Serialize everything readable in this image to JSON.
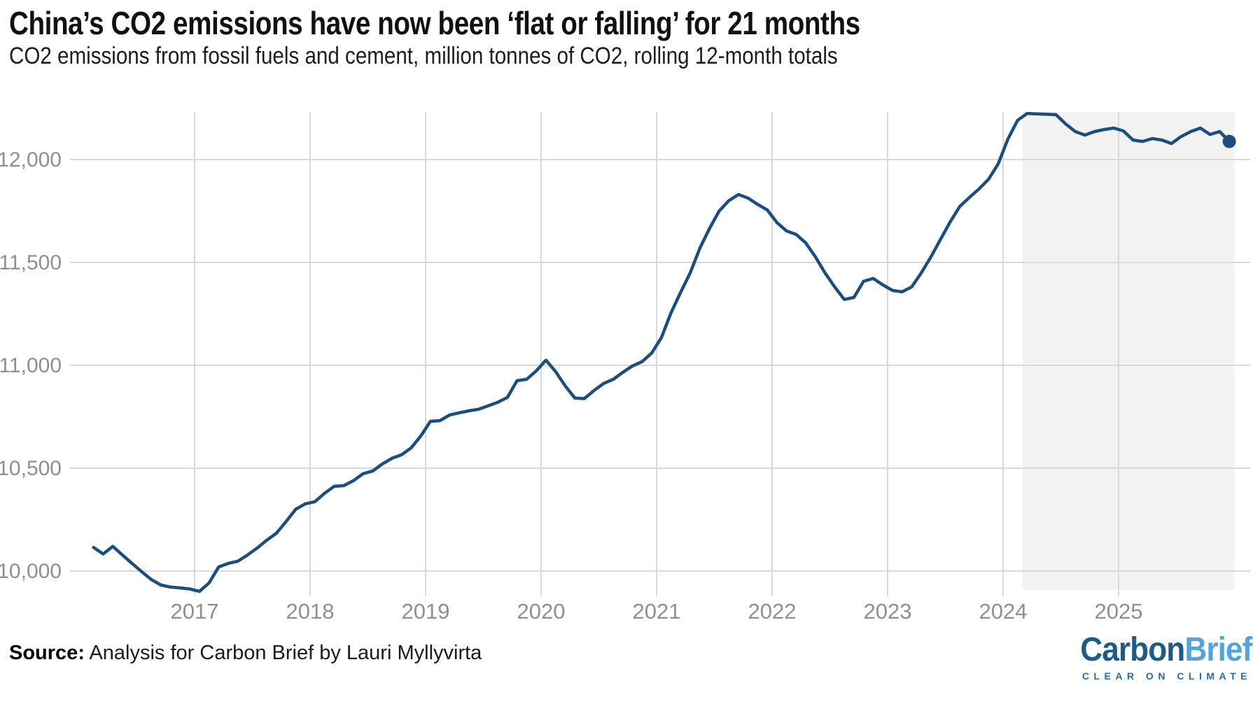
{
  "header": {
    "title": "China’s CO2 emissions have now been ‘flat or falling’ for 21 months",
    "subtitle": "CO2 emissions from fossil fuels and cement, million tonnes of CO2, rolling 12-month totals"
  },
  "footer": {
    "source_label": "Source:",
    "source_text": " Analysis for Carbon Brief by Lauri Myllyvirta"
  },
  "logo": {
    "part1": "Carbon",
    "part2": "Brief",
    "tagline": "CLEAR ON CLIMATE"
  },
  "colors": {
    "line": "#1b4e7d",
    "grid": "#d9d9d9",
    "tick_text": "#8f8f8f",
    "highlight_band": "#f2f2f2",
    "logo_dark": "#1f5b87",
    "logo_light": "#54a4d9"
  },
  "chart_data": {
    "type": "line",
    "title": "China’s CO2 emissions have now been ‘flat or falling’ for 21 months",
    "unit": "million tonnes of CO2, rolling 12-month totals",
    "grid": "on",
    "y_ticks": [
      10000,
      10500,
      11000,
      11500,
      12000
    ],
    "y_tick_labels": [
      "10,000",
      "10,500",
      "11,000",
      "11,500",
      "12,000"
    ],
    "x_ticks": [
      2017,
      2018,
      2019,
      2020,
      2021,
      2022,
      2023,
      2024,
      2025
    ],
    "ylim": [
      9900,
      12240
    ],
    "highlight_region": {
      "from": "2024-03",
      "to": "2025-12"
    },
    "end_point_marker": true,
    "series": [
      {
        "name": "CO2 emissions, rolling 12-month total",
        "start": "2016-02",
        "monthly_values": [
          10115,
          10083,
          10120,
          10078,
          10037,
          9997,
          9959,
          9932,
          9922,
          9918,
          9913,
          9901,
          9942,
          10020,
          10037,
          10048,
          10078,
          10112,
          10150,
          10184,
          10240,
          10300,
          10327,
          10337,
          10378,
          10412,
          10415,
          10439,
          10473,
          10486,
          10520,
          10548,
          10565,
          10599,
          10656,
          10728,
          10731,
          10759,
          10769,
          10779,
          10786,
          10803,
          10820,
          10844,
          10925,
          10932,
          10973,
          11025,
          10970,
          10900,
          10841,
          10838,
          10878,
          10912,
          10932,
          10966,
          10997,
          11018,
          11060,
          11135,
          11255,
          11355,
          11450,
          11570,
          11665,
          11750,
          11800,
          11830,
          11813,
          11782,
          11755,
          11694,
          11653,
          11636,
          11595,
          11527,
          11449,
          11381,
          11320,
          11330,
          11408,
          11422,
          11391,
          11364,
          11357,
          11381,
          11449,
          11527,
          11612,
          11697,
          11772,
          11816,
          11857,
          11905,
          11980,
          12100,
          12190,
          12224,
          12222,
          12220,
          12218,
          12173,
          12136,
          12119,
          12136,
          12146,
          12153,
          12139,
          12095,
          12088,
          12102,
          12095,
          12078,
          12112,
          12136,
          12153,
          12122,
          12136,
          12088
        ]
      }
    ]
  }
}
